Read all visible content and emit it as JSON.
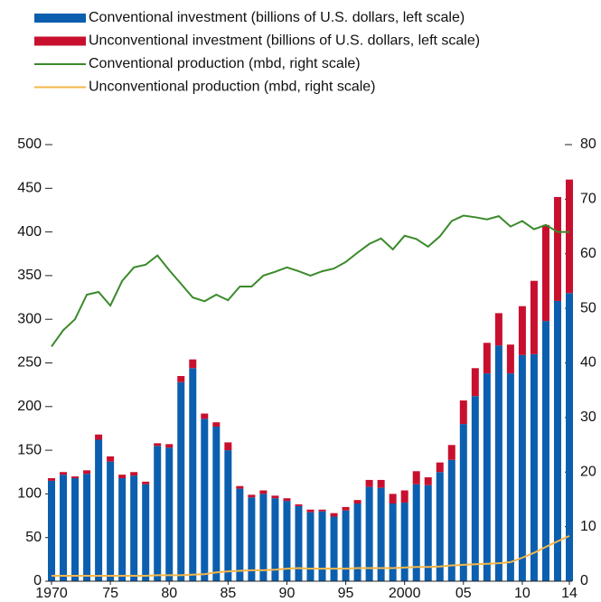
{
  "chart_data": {
    "type": "bar",
    "stacked": true,
    "categories": [
      "1970",
      null,
      null,
      null,
      null,
      "75",
      null,
      null,
      null,
      null,
      "80",
      null,
      null,
      null,
      null,
      "85",
      null,
      null,
      null,
      null,
      "90",
      null,
      null,
      null,
      null,
      "95",
      null,
      null,
      null,
      null,
      "2000",
      null,
      null,
      null,
      null,
      "05",
      null,
      null,
      null,
      null,
      "10",
      null,
      null,
      null,
      "14"
    ],
    "series": [
      {
        "name": "Conventional investment (billions of U.S. dollars, left scale)",
        "type": "bar",
        "axis": "y",
        "color": "#0b5fae",
        "values": [
          115,
          122,
          118,
          123,
          162,
          137,
          118,
          121,
          111,
          155,
          153,
          228,
          244,
          186,
          177,
          150,
          106,
          96,
          100,
          95,
          92,
          86,
          79,
          80,
          74,
          81,
          89,
          108,
          107,
          89,
          90,
          111,
          110,
          125,
          139,
          180,
          212,
          238,
          270,
          238,
          259,
          260,
          298,
          321,
          330
        ]
      },
      {
        "name": "Unconventional investment (billions of U.S. dollars, left scale)",
        "type": "bar",
        "axis": "y",
        "color": "#c8102e",
        "values": [
          3,
          3,
          2,
          4,
          6,
          6,
          4,
          4,
          3,
          3,
          4,
          7,
          10,
          6,
          5,
          9,
          3,
          3,
          4,
          3,
          3,
          2,
          3,
          2,
          4,
          4,
          4,
          8,
          9,
          11,
          14,
          15,
          9,
          11,
          17,
          27,
          32,
          35,
          37,
          33,
          56,
          84,
          110,
          119,
          130
        ]
      },
      {
        "name": "Conventional production (mbd, right scale)",
        "type": "line",
        "axis": "y2",
        "color": "#3a8a2a",
        "values": [
          43,
          46,
          48,
          52.5,
          53,
          50.5,
          55,
          57.5,
          58,
          59.7,
          57,
          54.5,
          52,
          51.3,
          52.5,
          51.5,
          54,
          54,
          56,
          56.7,
          57.5,
          56.8,
          56,
          56.8,
          57.3,
          58.5,
          60.2,
          61.8,
          62.8,
          60.8,
          63.3,
          62.7,
          61.3,
          63.2,
          66,
          67,
          66.7,
          66.3,
          66.9,
          65,
          66,
          64.5,
          65.3,
          64,
          64
        ]
      },
      {
        "name": "Unconventional production (mbd, right scale)",
        "type": "line",
        "axis": "y2",
        "color": "#f5b64a",
        "values": [
          1,
          1,
          1,
          1,
          1,
          1,
          1,
          1,
          1,
          1.1,
          1.1,
          1.1,
          1.2,
          1.3,
          1.6,
          1.8,
          1.9,
          2,
          2,
          2.1,
          2.3,
          2.4,
          2.3,
          2.3,
          2.3,
          2.3,
          2.4,
          2.4,
          2.4,
          2.4,
          2.5,
          2.6,
          2.6,
          2.7,
          2.9,
          3,
          3.1,
          3.2,
          3.3,
          3.5,
          4.3,
          5.2,
          6.3,
          7.3,
          8.3
        ]
      }
    ],
    "ylim": [
      0,
      500
    ],
    "yticks": [
      0,
      50,
      100,
      150,
      200,
      250,
      300,
      350,
      400,
      450,
      500
    ],
    "y2lim": [
      0,
      80
    ],
    "y2ticks": [
      0,
      10,
      20,
      30,
      40,
      50,
      60,
      70,
      80
    ],
    "legend": "top-left"
  }
}
